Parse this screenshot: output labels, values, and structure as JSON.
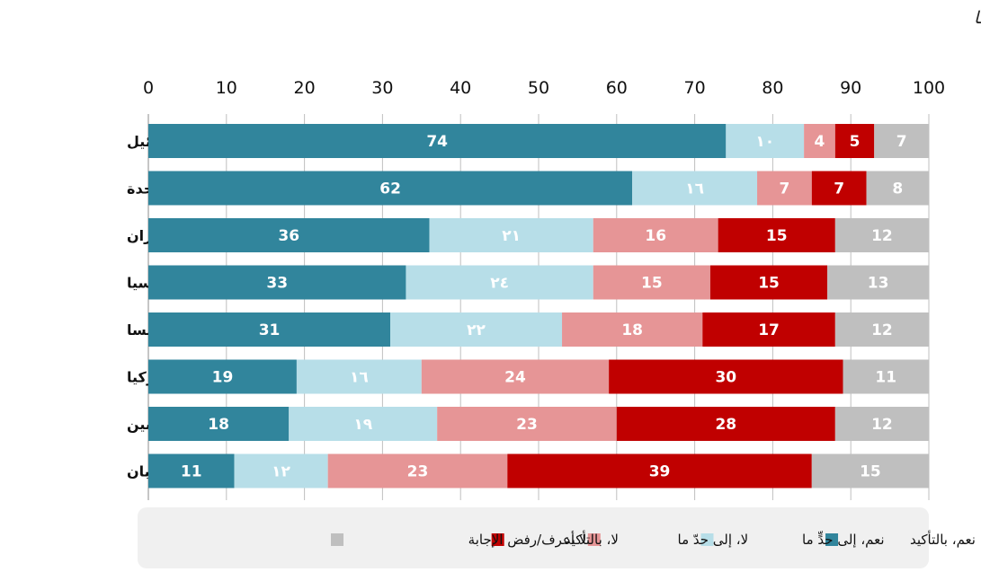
{
  "chart_data": {
    "type": "bar",
    "orientation": "horizontal",
    "stacked": true,
    "title": "هل تعتقد أن السياسات الراهنة لبعض القوى الدولية الإقليمية تهدد أمن المنطقة واستقرارها",
    "xlabel": "",
    "ylabel": "",
    "xlim": [
      0,
      100
    ],
    "x_ticks": [
      "0",
      "10",
      "20",
      "30",
      "40",
      "50",
      "60",
      "70",
      "80",
      "90",
      "100"
    ],
    "grid": true,
    "legend_position": "bottom",
    "categories": [
      "إسرائيل",
      "الولايات المتحدة",
      "إيران",
      "روسيا",
      "فرنسا",
      "تركيا",
      "الصين",
      "اليابان"
    ],
    "series": [
      {
        "name": "نعم، بالتأكيد",
        "color": "#31859c",
        "text_color": "#ffffff",
        "values": [
          74,
          62,
          36,
          33,
          31,
          19,
          18,
          11
        ],
        "labels": [
          "74",
          "62",
          "36",
          "33",
          "31",
          "19",
          "18",
          "11"
        ]
      },
      {
        "name": "نعم، إلى حدٍّ ما",
        "color": "#b7dee8",
        "text_color": "#ffffff",
        "values": [
          10,
          16,
          21,
          24,
          22,
          16,
          19,
          12
        ],
        "labels": [
          "١٠",
          "١٦",
          "٢١",
          "٢٤",
          "٢٢",
          "١٦",
          "١٩",
          "١٢"
        ]
      },
      {
        "name": "لا، إلى حدّ ما",
        "color": "#e69596",
        "text_color": "#ffffff",
        "values": [
          4,
          7,
          16,
          15,
          18,
          24,
          23,
          23
        ],
        "labels": [
          "4",
          "7",
          "16",
          "15",
          "18",
          "24",
          "23",
          "23"
        ]
      },
      {
        "name": "لا، بالتأكيد",
        "color": "#c00000",
        "text_color": "#ffffff",
        "values": [
          5,
          7,
          15,
          15,
          17,
          30,
          28,
          39
        ],
        "labels": [
          "5",
          "7",
          "15",
          "15",
          "17",
          "30",
          "28",
          "39"
        ]
      },
      {
        "name": "لا أعرف/رفض الإجابة",
        "color": "#bfbfbf",
        "text_color": "#ffffff",
        "values": [
          7,
          8,
          12,
          13,
          12,
          11,
          12,
          15
        ],
        "labels": [
          "7",
          "8",
          "12",
          "13",
          "12",
          "11",
          "12",
          "15"
        ]
      }
    ]
  }
}
